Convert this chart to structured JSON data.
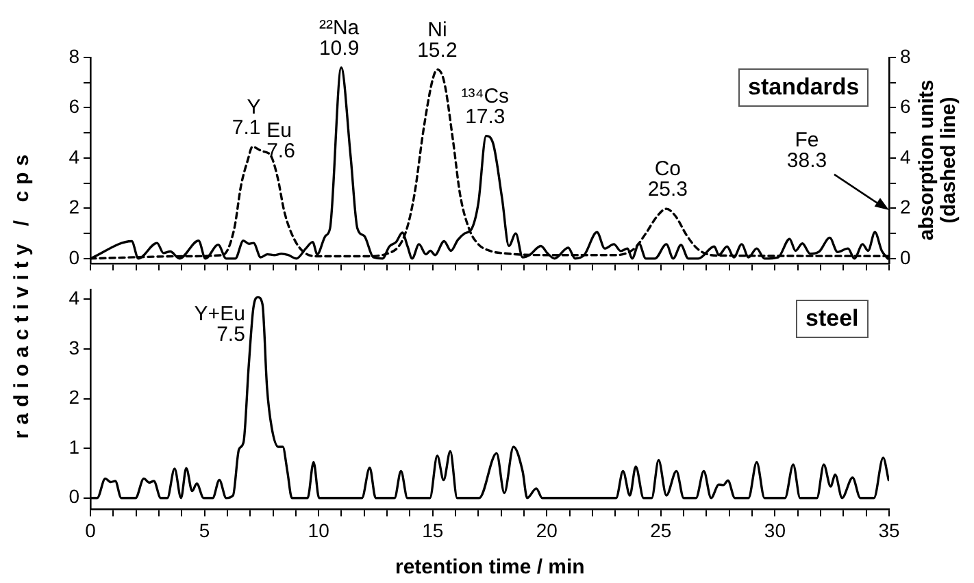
{
  "chart_data": [
    {
      "type": "line",
      "ylabel": "radioactivity / cps",
      "y2label": "absorption units (dashed line)",
      "xlim": [
        0,
        35
      ],
      "ylim": [
        -0.2,
        8
      ],
      "y2lim": [
        -0.2,
        8
      ],
      "xticks": [
        {
          "value": 0,
          "label": null
        },
        {
          "value": 1,
          "label": null
        },
        {
          "value": 2,
          "label": null
        },
        {
          "value": 3,
          "label": null
        },
        {
          "value": 4,
          "label": null
        },
        {
          "value": 5,
          "label": null
        },
        {
          "value": 6,
          "label": null
        },
        {
          "value": 7,
          "label": null
        },
        {
          "value": 8,
          "label": null
        },
        {
          "value": 9,
          "label": null
        },
        {
          "value": 10,
          "label": null
        },
        {
          "value": 11,
          "label": null
        },
        {
          "value": 12,
          "label": null
        },
        {
          "value": 13,
          "label": null
        },
        {
          "value": 14,
          "label": null
        },
        {
          "value": 15,
          "label": null
        },
        {
          "value": 16,
          "label": null
        },
        {
          "value": 17,
          "label": null
        },
        {
          "value": 18,
          "label": null
        },
        {
          "value": 19,
          "label": null
        },
        {
          "value": 20,
          "label": null
        },
        {
          "value": 21,
          "label": null
        },
        {
          "value": 22,
          "label": null
        },
        {
          "value": 23,
          "label": null
        },
        {
          "value": 24,
          "label": null
        },
        {
          "value": 25,
          "label": null
        },
        {
          "value": 26,
          "label": null
        },
        {
          "value": 27,
          "label": null
        },
        {
          "value": 28,
          "label": null
        },
        {
          "value": 29,
          "label": null
        },
        {
          "value": 30,
          "label": null
        },
        {
          "value": 31,
          "label": null
        },
        {
          "value": 32,
          "label": null
        },
        {
          "value": 33,
          "label": null
        },
        {
          "value": 34,
          "label": null
        },
        {
          "value": 35,
          "label": null
        }
      ],
      "yticks": [
        0,
        {
          "value": 1,
          "label": null
        },
        2,
        {
          "value": 3,
          "label": null
        },
        4,
        {
          "value": 5,
          "label": null
        },
        6,
        {
          "value": 7,
          "label": null
        },
        8
      ],
      "y2ticks": [
        0,
        {
          "value": 1,
          "label": null
        },
        2,
        {
          "value": 3,
          "label": null
        },
        4,
        {
          "value": 5,
          "label": null
        },
        6,
        {
          "value": 7,
          "label": null
        },
        8
      ],
      "tick_labels": "y",
      "grid": false,
      "legend": false,
      "marker": "none",
      "series": [
        {
          "color": "#000000",
          "line_style": "solid",
          "x": [
            0,
            1.81,
            2.1,
            2.92,
            3.2,
            3.5,
            3.9,
            4.74,
            5.04,
            5.6,
            5.95,
            6.35,
            6.7,
            6.95,
            7.15,
            7.46,
            7.76,
            8.06,
            8.37,
            8.67,
            9.03,
            9.44,
            9.74,
            9.94,
            10.3,
            10.5,
            10.99,
            11.4,
            11.7,
            12.0,
            12.4,
            12.8,
            13.1,
            13.4,
            13.67,
            13.9,
            14.1,
            14.4,
            14.7,
            14.9,
            15.1,
            15.5,
            15.8,
            16.1,
            16.4,
            16.7,
            17.0,
            17.34,
            17.64,
            18.04,
            18.34,
            18.64,
            18.94,
            19.24,
            19.74,
            20.04,
            20.34,
            20.94,
            21.24,
            21.64,
            22.2,
            22.54,
            22.94,
            23.24,
            23.54,
            23.74,
            24.04,
            24.34,
            24.74,
            25.24,
            25.54,
            25.88,
            26.2,
            26.64,
            27.34,
            27.54,
            27.9,
            28.2,
            28.54,
            28.84,
            29.2,
            29.54,
            30.14,
            30.64,
            30.9,
            31.2,
            31.54,
            31.94,
            32.4,
            32.74,
            33.2,
            33.48,
            33.84,
            34.08,
            34.38,
            34.68,
            34.94
          ],
          "values": [
            0,
            0.69,
            0,
            0.62,
            0.22,
            0.28,
            0,
            0.71,
            0,
            0.55,
            0,
            0,
            0.71,
            0.59,
            0.62,
            0.05,
            0.17,
            0.14,
            0.19,
            0.14,
            0,
            0.4,
            0.66,
            0.17,
            0.9,
            1.2,
            7.6,
            4.1,
            1.2,
            0.9,
            0.05,
            0,
            0.48,
            0.66,
            1.03,
            0.48,
            0,
            0.57,
            0.17,
            0.31,
            0.14,
            0.69,
            0.31,
            0.74,
            1.0,
            1.17,
            2.2,
            4.88,
            4.6,
            2.4,
            0.5,
            1.0,
            0.05,
            0.14,
            0.5,
            0.2,
            0,
            0.43,
            0,
            0.14,
            1.05,
            0.4,
            0.57,
            0.3,
            0.4,
            0,
            0.6,
            0,
            0,
            0.57,
            0,
            0.54,
            0,
            0,
            0.48,
            0.14,
            0.48,
            0.05,
            0.57,
            0.05,
            0.4,
            0,
            0.05,
            0.78,
            0.31,
            0.6,
            0.19,
            0.28,
            0.83,
            0.26,
            0.4,
            0,
            0.57,
            0.31,
            1.05,
            0.31,
            0
          ]
        },
        {
          "color": "#000000",
          "line_style": "dashed",
          "axis": "y2",
          "x": [
            0,
            4.0,
            5.8,
            6.3,
            6.6,
            6.9,
            7.1,
            7.5,
            7.9,
            8.2,
            8.5,
            8.9,
            9.4,
            10.0,
            12.0,
            13.2,
            13.8,
            14.2,
            14.6,
            15.0,
            15.2,
            15.5,
            15.9,
            16.2,
            16.6,
            17.0,
            17.5,
            18.24,
            20.04,
            23.04,
            23.84,
            24.34,
            24.84,
            25.24,
            25.64,
            26.14,
            26.64,
            27.44,
            35
          ],
          "values": [
            0,
            0.09,
            0.14,
            1.17,
            2.9,
            3.93,
            4.45,
            4.28,
            4.1,
            3.24,
            1.86,
            0.83,
            0.22,
            0.09,
            0.09,
            0.26,
            1.0,
            2.55,
            5.14,
            7.13,
            7.52,
            7.04,
            4.63,
            2.55,
            1.17,
            0.57,
            0.31,
            0.2,
            0.14,
            0.14,
            0.4,
            1.0,
            1.69,
            1.98,
            1.69,
            0.91,
            0.36,
            0.12,
            0.1
          ]
        }
      ],
      "annotations": [
        "standards",
        {
          "text": "Y\n7.1",
          "x": 7.1,
          "y": 4.45
        },
        {
          "text": "Eu\n7.6",
          "x": 7.6,
          "y": 4.28
        },
        {
          "text": "²²Na\n10.9",
          "x": 10.9,
          "y": 7.6
        },
        {
          "text": "Ni\n15.2",
          "x": 15.2,
          "y": 7.52
        },
        {
          "text": "¹³⁴Cs\n17.3",
          "x": 17.3,
          "y": 4.88
        },
        {
          "text": "Co\n25.3",
          "x": 25.3,
          "y": 1.98
        },
        "Fe\n38.3"
      ]
    },
    {
      "type": "line",
      "xlabel": "retention time / min",
      "xlim": [
        0,
        35
      ],
      "ylim": [
        -0.23,
        4.2
      ],
      "xticks": [
        0,
        {
          "value": 1,
          "label": null
        },
        {
          "value": 2,
          "label": null
        },
        {
          "value": 3,
          "label": null
        },
        {
          "value": 4,
          "label": null
        },
        5,
        {
          "value": 6,
          "label": null
        },
        {
          "value": 7,
          "label": null
        },
        {
          "value": 8,
          "label": null
        },
        {
          "value": 9,
          "label": null
        },
        10,
        {
          "value": 11,
          "label": null
        },
        {
          "value": 12,
          "label": null
        },
        {
          "value": 13,
          "label": null
        },
        {
          "value": 14,
          "label": null
        },
        15,
        {
          "value": 16,
          "label": null
        },
        {
          "value": 17,
          "label": null
        },
        {
          "value": 18,
          "label": null
        },
        {
          "value": 19,
          "label": null
        },
        20,
        {
          "value": 21,
          "label": null
        },
        {
          "value": 22,
          "label": null
        },
        {
          "value": 23,
          "label": null
        },
        {
          "value": 24,
          "label": null
        },
        25,
        {
          "value": 26,
          "label": null
        },
        {
          "value": 27,
          "label": null
        },
        {
          "value": 28,
          "label": null
        },
        {
          "value": 29,
          "label": null
        },
        30,
        {
          "value": 31,
          "label": null
        },
        {
          "value": 32,
          "label": null
        },
        {
          "value": 33,
          "label": null
        },
        {
          "value": 34,
          "label": null
        },
        35
      ],
      "yticks": [
        0,
        1,
        2,
        3,
        4
      ],
      "grid": false,
      "legend": false,
      "marker": "none",
      "line_style": "solid",
      "series": [
        {
          "color": "#000000",
          "x": [
            0,
            0.3,
            0.65,
            0.89,
            1.09,
            1.35,
            1.98,
            2.34,
            2.58,
            2.78,
            3.08,
            3.37,
            3.69,
            3.97,
            4.2,
            4.46,
            4.66,
            4.96,
            5.36,
            5.65,
            5.95,
            6.25,
            6.51,
            6.71,
            6.94,
            7.14,
            7.34,
            7.54,
            7.74,
            7.94,
            8.23,
            8.43,
            8.63,
            8.83,
            9.52,
            9.78,
            10.02,
            11.9,
            12.24,
            12.5,
            13.33,
            13.61,
            13.89,
            14.88,
            15.2,
            15.48,
            15.77,
            16.07,
            17.04,
            17.8,
            18.14,
            18.54,
            18.94,
            19.14,
            19.54,
            19.8,
            23.04,
            23.34,
            23.64,
            23.9,
            24.24,
            24.6,
            24.9,
            25.24,
            25.68,
            26.0,
            26.54,
            26.88,
            27.2,
            27.54,
            27.74,
            27.94,
            28.24,
            28.84,
            29.2,
            29.54,
            30.44,
            30.8,
            31.1,
            31.84,
            32.14,
            32.44,
            32.64,
            32.94,
            33.4,
            33.74,
            34.34,
            34.74,
            34.98
          ],
          "values": [
            0,
            0,
            0.39,
            0.32,
            0.34,
            0,
            0,
            0.39,
            0.31,
            0.34,
            0,
            0,
            0.59,
            0,
            0.6,
            0.14,
            0.29,
            0,
            0,
            0.36,
            0,
            0.05,
            0.98,
            1.12,
            2.67,
            3.82,
            4.04,
            3.9,
            2.22,
            1.43,
            1.03,
            1.03,
            0.54,
            0,
            0,
            0.72,
            0,
            0,
            0.61,
            0,
            0,
            0.54,
            0,
            0,
            0.85,
            0.36,
            0.94,
            0,
            0,
            0.9,
            0.1,
            1.03,
            0.54,
            0,
            0.19,
            0,
            0,
            0.54,
            0.05,
            0.63,
            0,
            0,
            0.76,
            0.05,
            0.54,
            0,
            0,
            0.54,
            0,
            0.27,
            0.26,
            0.35,
            0,
            0,
            0.72,
            0,
            0,
            0.67,
            0,
            0,
            0.67,
            0.23,
            0.47,
            0,
            0.41,
            0,
            0,
            0.81,
            0.36
          ]
        }
      ],
      "annotations": [
        "steel",
        {
          "text": "Y+Eu\n7.5",
          "x": 7.5,
          "y": 4.04
        }
      ]
    }
  ]
}
